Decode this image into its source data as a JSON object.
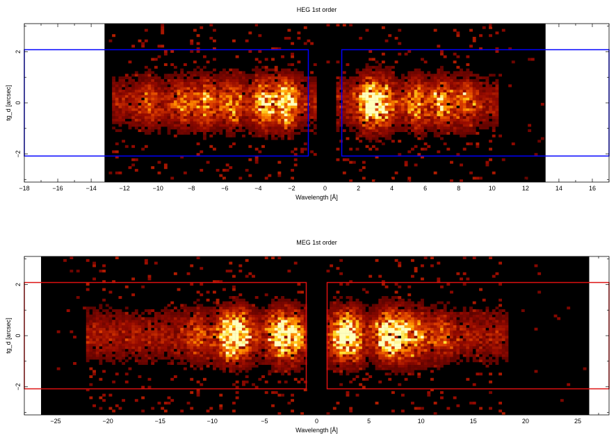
{
  "chart_data": [
    {
      "type": "heatmap",
      "title": "HEG 1st order",
      "xlabel": "Wavelength [Å]",
      "ylabel": "tg_d [arcsec]",
      "xlim": [
        -18,
        17
      ],
      "ylim": [
        -3.1,
        3.1
      ],
      "xticks": [
        -18,
        -16,
        -14,
        -12,
        -10,
        -8,
        -6,
        -4,
        -2,
        0,
        2,
        4,
        6,
        8,
        10,
        12,
        14,
        16
      ],
      "yticks": [
        -2,
        0,
        2
      ],
      "detector_range": [
        -13.2,
        13.2
      ],
      "region_color": "#0000ff",
      "extraction_regions": [
        {
          "x": [
            -18,
            -1
          ],
          "y": [
            -2.08,
            2.08
          ]
        },
        {
          "x": [
            1,
            17
          ],
          "y": [
            -2.08,
            2.08
          ]
        }
      ],
      "source_extent": [
        {
          "x": [
            -12.7,
            -0.5
          ]
        },
        {
          "x": [
            0.6,
            10.3
          ]
        }
      ],
      "emission_peaks": [
        {
          "x": -2.3,
          "intensity": 1.0
        },
        {
          "x": -3.6,
          "intensity": 0.85
        },
        {
          "x": -5.6,
          "intensity": 0.55
        },
        {
          "x": -7.2,
          "intensity": 0.5
        },
        {
          "x": -8.5,
          "intensity": 0.35
        },
        {
          "x": -10.5,
          "intensity": 0.25
        },
        {
          "x": 2.6,
          "intensity": 1.0
        },
        {
          "x": 3.5,
          "intensity": 0.8
        },
        {
          "x": 5.5,
          "intensity": 0.55
        },
        {
          "x": 7.0,
          "intensity": 0.6
        },
        {
          "x": 8.5,
          "intensity": 0.4
        }
      ]
    },
    {
      "type": "heatmap",
      "title": "MEG 1st order",
      "xlabel": "Wavelength [Å]",
      "ylabel": "tg_d [arcsec]",
      "xlim": [
        -28,
        28
      ],
      "ylim": [
        -3.1,
        3.1
      ],
      "xticks": [
        -25,
        -20,
        -15,
        -10,
        -5,
        0,
        5,
        10,
        15,
        20,
        25
      ],
      "yticks": [
        -2,
        0,
        2
      ],
      "detector_range": [
        -26.4,
        26.1
      ],
      "region_color": "#dd1111",
      "extraction_regions": [
        {
          "x": [
            -28,
            -1
          ],
          "y": [
            -2.08,
            2.08
          ]
        },
        {
          "x": [
            1,
            28
          ],
          "y": [
            -2.08,
            2.08
          ]
        }
      ],
      "source_extent": [
        {
          "x": [
            -22,
            -0.8
          ]
        },
        {
          "x": [
            0.8,
            18.5
          ]
        }
      ],
      "emission_peaks": [
        {
          "x": -7.3,
          "intensity": 1.0
        },
        {
          "x": -8.6,
          "intensity": 0.85
        },
        {
          "x": -3.6,
          "intensity": 0.9
        },
        {
          "x": -2.3,
          "intensity": 0.75
        },
        {
          "x": -11.5,
          "intensity": 0.3
        },
        {
          "x": 2.4,
          "intensity": 0.95
        },
        {
          "x": 3.4,
          "intensity": 0.75
        },
        {
          "x": 6.7,
          "intensity": 1.0
        },
        {
          "x": 8.0,
          "intensity": 0.85
        },
        {
          "x": 9.7,
          "intensity": 0.55
        },
        {
          "x": 12.0,
          "intensity": 0.3
        }
      ]
    }
  ]
}
